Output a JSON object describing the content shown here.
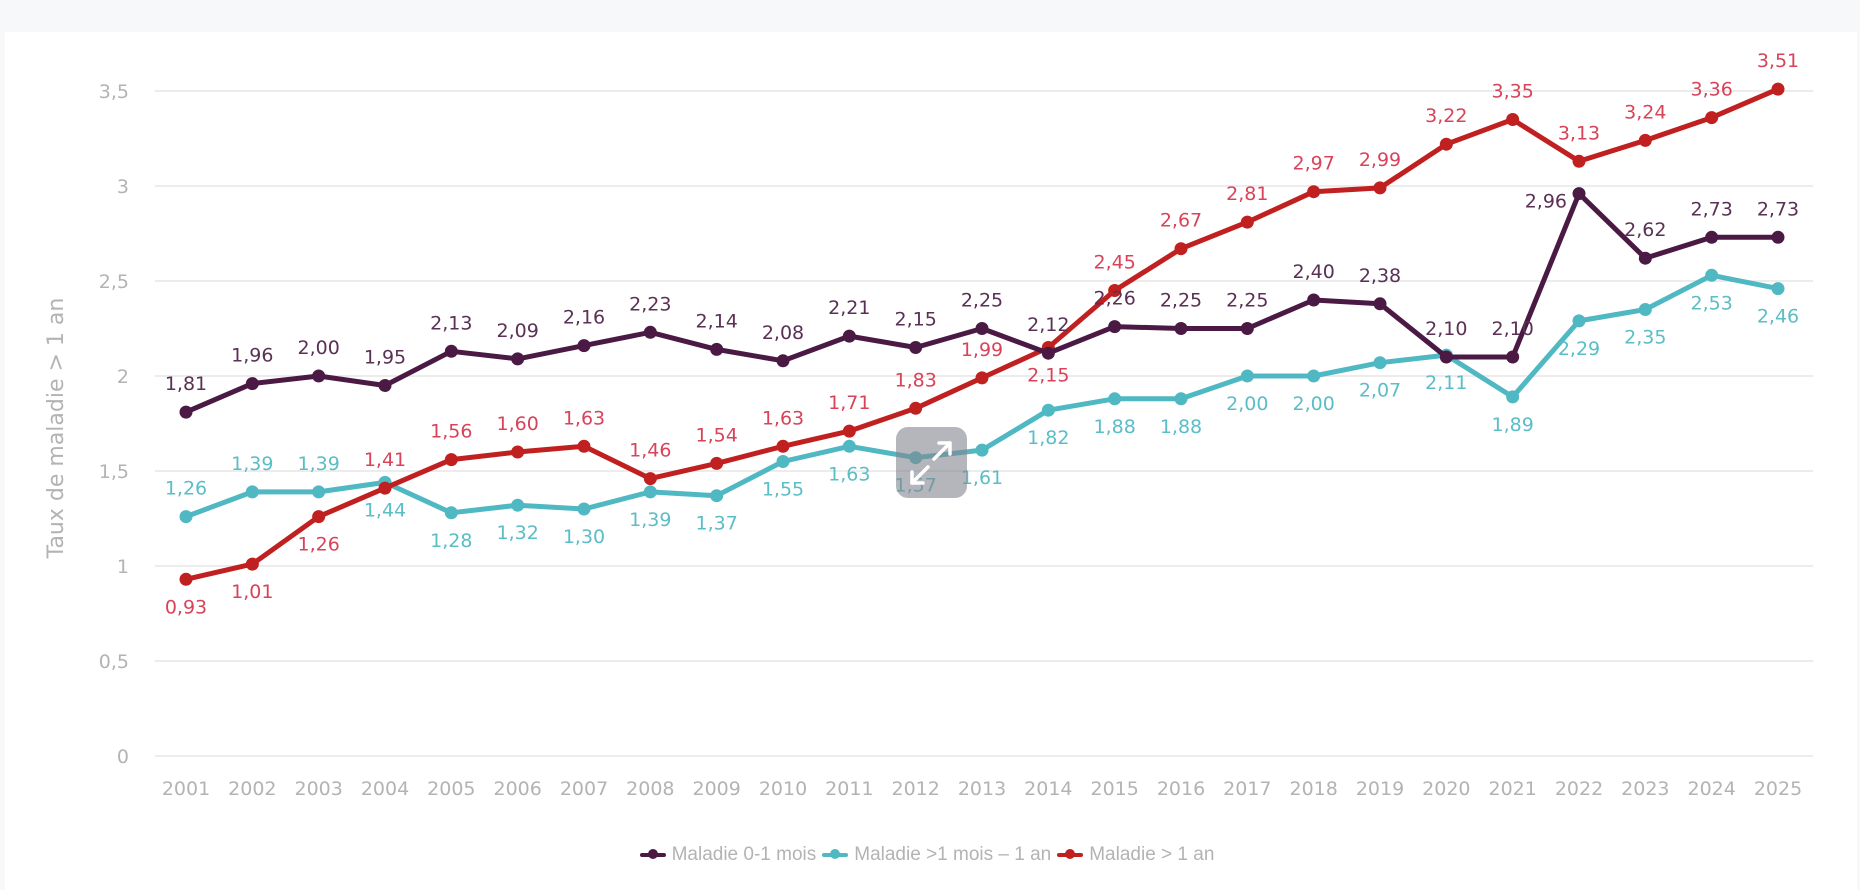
{
  "chart_data": {
    "type": "line",
    "title": "",
    "xlabel": "",
    "ylabel": "Taux de maladie > 1 an",
    "ylim": [
      0,
      3.5
    ],
    "yticks": [
      0,
      0.5,
      1,
      1.5,
      2,
      2.5,
      3,
      3.5
    ],
    "ytick_labels": [
      "0",
      "0,5",
      "1",
      "1,5",
      "2",
      "2,5",
      "3",
      "3,5"
    ],
    "grid": true,
    "legend_position": "bottom-center",
    "categories": [
      "2001",
      "2002",
      "2003",
      "2004",
      "2005",
      "2006",
      "2007",
      "2008",
      "2009",
      "2010",
      "2011",
      "2012",
      "2013",
      "2014",
      "2015",
      "2016",
      "2017",
      "2018",
      "2019",
      "2020",
      "2021",
      "2022",
      "2023",
      "2024",
      "2025"
    ],
    "series": [
      {
        "name": "Maladie 0-1 mois",
        "color": "#4a1a45",
        "label_color": "#5a3054",
        "values": [
          1.81,
          1.96,
          2.0,
          1.95,
          2.13,
          2.09,
          2.16,
          2.23,
          2.14,
          2.08,
          2.21,
          2.15,
          2.25,
          2.12,
          2.26,
          2.25,
          2.25,
          2.4,
          2.38,
          2.1,
          2.1,
          2.96,
          2.62,
          2.73,
          2.73
        ],
        "labels": [
          "1,81",
          "1,96",
          "2,00",
          "1,95",
          "2,13",
          "2,09",
          "2,16",
          "2,23",
          "2,14",
          "2,08",
          "2,21",
          "2,15",
          "2,25",
          "2,12",
          "2,26",
          "2,25",
          "2,25",
          "2,40",
          "2,38",
          "2,10",
          "2,10",
          "2,96",
          "2,62",
          "2,73",
          "2,73"
        ]
      },
      {
        "name": "Maladie >1 mois – 1 an",
        "color": "#4fb8c2",
        "label_color": "#5bbdc6",
        "values": [
          1.26,
          1.39,
          1.39,
          1.44,
          1.28,
          1.32,
          1.3,
          1.39,
          1.37,
          1.55,
          1.63,
          1.57,
          1.61,
          1.82,
          1.88,
          1.88,
          2.0,
          2.0,
          2.07,
          2.11,
          1.89,
          2.29,
          2.35,
          2.53,
          2.46
        ],
        "labels": [
          "1,26",
          "1,39",
          "1,39",
          "1,44",
          "1,28",
          "1,32",
          "1,30",
          "1,39",
          "1,37",
          "1,55",
          "1,63",
          "1,57",
          "1,61",
          "1,82",
          "1,88",
          "1,88",
          "2,00",
          "2,00",
          "2,07",
          "2,11",
          "1,89",
          "2,29",
          "2,35",
          "2,53",
          "2,46"
        ]
      },
      {
        "name": "Maladie > 1 an",
        "color": "#c0201f",
        "label_color": "#d8435a",
        "values": [
          0.93,
          1.01,
          1.26,
          1.41,
          1.56,
          1.6,
          1.63,
          1.46,
          1.54,
          1.63,
          1.71,
          1.83,
          1.99,
          2.15,
          2.45,
          2.67,
          2.81,
          2.97,
          2.99,
          3.22,
          3.35,
          3.13,
          3.24,
          3.36,
          3.51
        ],
        "labels": [
          "0,93",
          "1,01",
          "1,26",
          "1,41",
          "1,56",
          "1,60",
          "1,63",
          "1,46",
          "1,54",
          "1,63",
          "1,71",
          "1,83",
          "1,99",
          "2,15",
          "2,45",
          "2,67",
          "2,81",
          "2,97",
          "2,99",
          "3,22",
          "3,35",
          "3,13",
          "3,24",
          "3,36",
          "3,51"
        ]
      }
    ]
  },
  "ui": {
    "expand_button_icon": "expand-arrows-icon"
  }
}
